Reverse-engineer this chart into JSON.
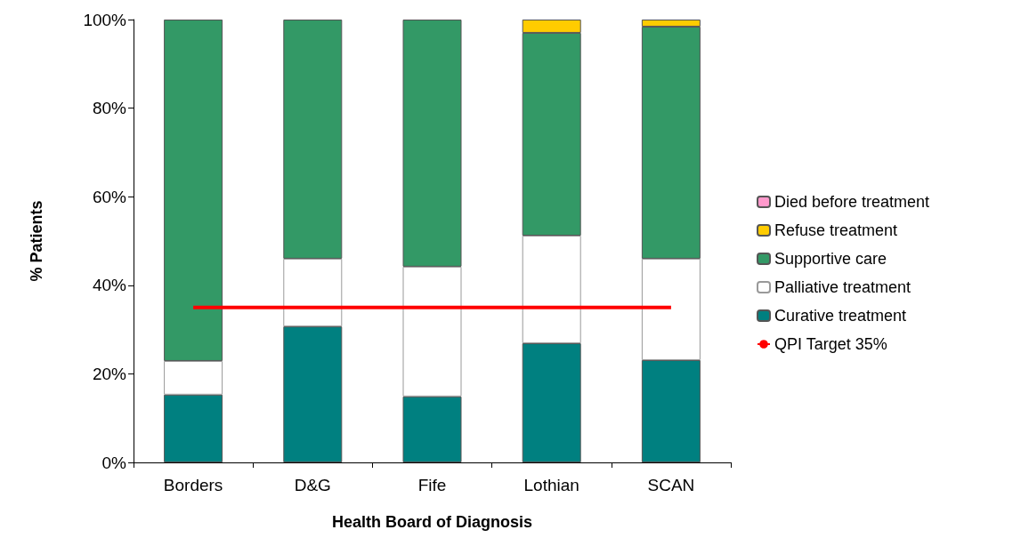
{
  "chart_data": {
    "type": "bar",
    "stacked": true,
    "xlabel": "Health Board of Diagnosis",
    "ylabel": "% Patients",
    "categories": [
      "Borders",
      "D&G",
      "Fife",
      "Lothian",
      "SCAN"
    ],
    "series": [
      {
        "name": "Curative treatment",
        "color": "#008080",
        "values": [
          15.3,
          30.7,
          14.9,
          26.9,
          23.1
        ]
      },
      {
        "name": "Palliative treatment",
        "color": "#ffffff",
        "values": [
          7.6,
          15.3,
          29.3,
          24.3,
          22.9
        ]
      },
      {
        "name": "Supportive care",
        "color": "#339966",
        "values": [
          77.1,
          54.0,
          55.8,
          45.8,
          52.4
        ]
      },
      {
        "name": "Refuse treatment",
        "color": "#ffcc00",
        "values": [
          0,
          0,
          0,
          3.0,
          1.6
        ]
      },
      {
        "name": "Died before treatment",
        "color": "#ff99cc",
        "values": [
          0,
          0,
          0,
          0,
          0
        ]
      },
      {
        "name": "QPI Target 35%",
        "type": "line",
        "color": "#ff0000",
        "values": [
          35,
          35,
          35,
          35,
          35
        ]
      }
    ],
    "ylim": [
      0,
      100
    ],
    "yticks": [
      {
        "value": 0,
        "label": "0%"
      },
      {
        "value": 20,
        "label": "20%"
      },
      {
        "value": 40,
        "label": "40%"
      },
      {
        "value": 60,
        "label": "60%"
      },
      {
        "value": 80,
        "label": "80%"
      },
      {
        "value": 100,
        "label": "100%"
      }
    ],
    "grid": false,
    "legend": "right",
    "marker": "none",
    "line_style": "solid"
  }
}
